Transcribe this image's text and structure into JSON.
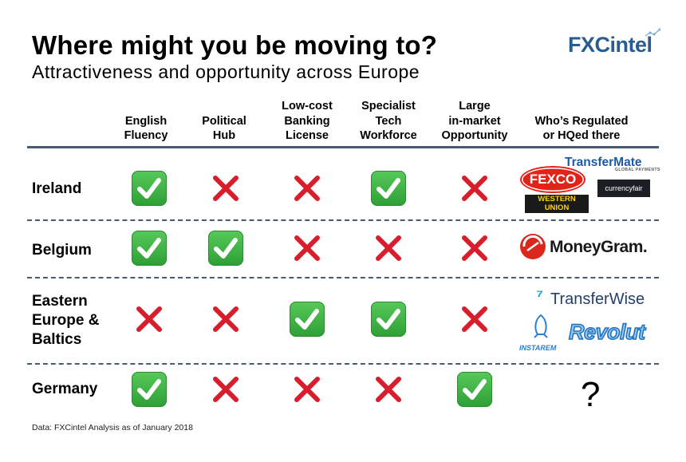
{
  "header": {
    "title": "Where might you be moving to?",
    "subtitle": "Attractiveness and opportunity across Europe",
    "logo": "FXCintel"
  },
  "columns": [
    {
      "line1": "",
      "line2": "English",
      "line3": "Fluency"
    },
    {
      "line1": "",
      "line2": "Political",
      "line3": "Hub"
    },
    {
      "line1": "Low-cost",
      "line2": "Banking",
      "line3": "License"
    },
    {
      "line1": "Specialist",
      "line2": "Tech",
      "line3": "Workforce"
    },
    {
      "line1": "Large",
      "line2": "in-market",
      "line3": "Opportunity"
    },
    {
      "line1": "",
      "line2": "Who’s Regulated",
      "line3": "or HQed there"
    }
  ],
  "rows": [
    {
      "label_lines": [
        "Ireland"
      ],
      "values": [
        true,
        false,
        false,
        true,
        false
      ],
      "brands": [
        "TransferMate",
        "GLOBAL PAYMENTS",
        "FEXCO",
        "currencyfair",
        "WESTERN",
        "UNION"
      ]
    },
    {
      "label_lines": [
        "Belgium"
      ],
      "values": [
        true,
        true,
        false,
        false,
        false
      ],
      "brands": [
        "MoneyGram."
      ]
    },
    {
      "label_lines": [
        "Eastern",
        "Europe &",
        "Baltics"
      ],
      "values": [
        false,
        false,
        true,
        true,
        false
      ],
      "brands": [
        "TransferWise",
        "INSTAREM",
        "Revolut"
      ]
    },
    {
      "label_lines": [
        "Germany"
      ],
      "values": [
        true,
        false,
        false,
        false,
        true
      ],
      "brands": [
        "?"
      ]
    }
  ],
  "footnote": "Data: FXCintel Analysis as of January 2018",
  "colors": {
    "check": "#3cb043",
    "cross": "#d81e2c",
    "rule": "#4a5a72",
    "logo": "#2a5d8f"
  },
  "icons": {
    "yes": "check-mark-icon",
    "no": "cross-mark-icon"
  }
}
